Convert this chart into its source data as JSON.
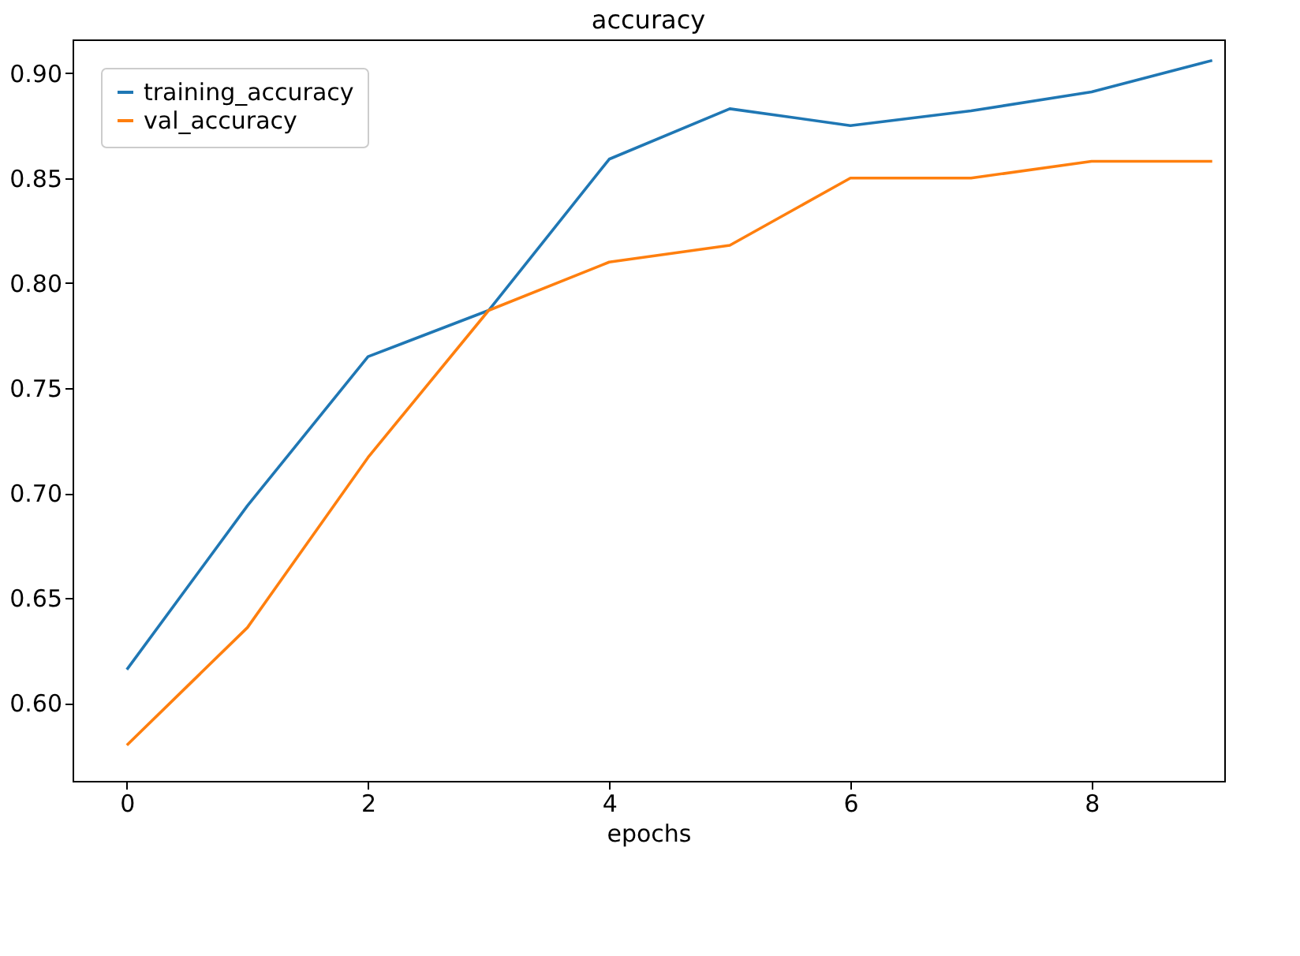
{
  "chart_data": {
    "type": "line",
    "title": "accuracy",
    "xlabel": "epochs",
    "x": [
      0,
      1,
      2,
      3,
      4,
      5,
      6,
      7,
      8,
      9
    ],
    "series": [
      {
        "name": "training_accuracy",
        "color": "#1f77b4",
        "values": [
          0.616,
          0.694,
          0.765,
          0.787,
          0.859,
          0.883,
          0.875,
          0.882,
          0.891,
          0.906
        ]
      },
      {
        "name": "val_accuracy",
        "color": "#ff7f0e",
        "values": [
          0.58,
          0.636,
          0.717,
          0.787,
          0.81,
          0.818,
          0.85,
          0.85,
          0.858,
          0.858
        ]
      }
    ],
    "xlim": [
      -0.45,
      9.1
    ],
    "ylim": [
      0.563,
      0.916
    ],
    "xticks": [
      0,
      2,
      4,
      6,
      8
    ],
    "yticks": [
      {
        "value": 0.6,
        "label": "0.60"
      },
      0.65,
      {
        "value": 0.7,
        "label": "0.70"
      },
      0.75,
      {
        "value": 0.8,
        "label": "0.80"
      },
      0.85,
      {
        "value": 0.9,
        "label": "0.90"
      }
    ],
    "grid": false,
    "legend": "top left",
    "marker": "none",
    "line_style": "solid"
  }
}
